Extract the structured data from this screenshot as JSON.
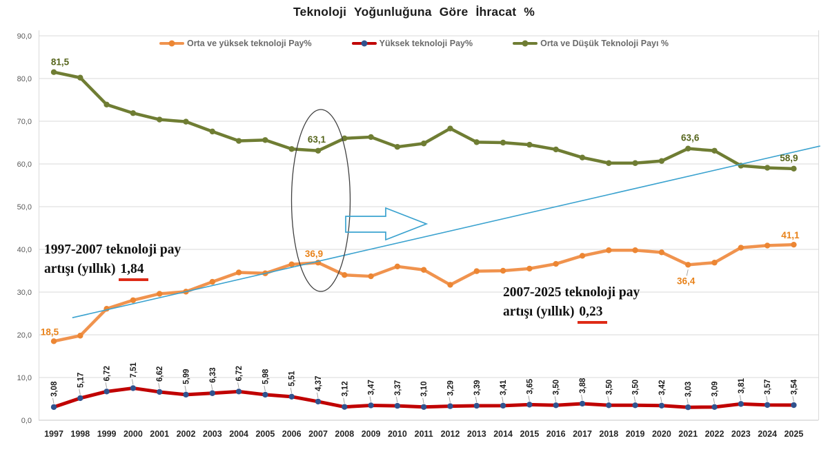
{
  "chart_data": {
    "type": "line",
    "title": "Teknoloji Yoğunluğuna Göre İhracat %",
    "x": [
      "1997",
      "1998",
      "1999",
      "2000",
      "2001",
      "2002",
      "2003",
      "2004",
      "2005",
      "2006",
      "2007",
      "2008",
      "2009",
      "2010",
      "2011",
      "2012",
      "2013",
      "2014",
      "2015",
      "2016",
      "2017",
      "2018",
      "2019",
      "2020",
      "2021",
      "2022",
      "2023",
      "2024",
      "2025"
    ],
    "ylim": [
      0,
      90
    ],
    "yticks": [
      "0,0",
      "10,0",
      "20,0",
      "30,0",
      "40,0",
      "50,0",
      "60,0",
      "70,0",
      "80,0",
      "90,0"
    ],
    "grid": true,
    "legend_position": "top",
    "series": [
      {
        "name": "Orta ve yüksek teknoloji Pay%",
        "color": "#F0934E",
        "marker_color": "#EC8633",
        "label_color": "#E8821A",
        "values": [
          18.5,
          19.8,
          26.1,
          28.1,
          29.6,
          30.1,
          32.4,
          34.6,
          34.4,
          36.5,
          36.9,
          34.0,
          33.7,
          36.0,
          35.2,
          31.7,
          34.9,
          35.0,
          35.5,
          36.6,
          38.5,
          39.8,
          39.8,
          39.3,
          36.4,
          36.9,
          40.4,
          40.9,
          41.1
        ],
        "labeled_points": {
          "1997": "18,5",
          "2007": "36,9",
          "2021": "36,4",
          "2025": "41,1"
        }
      },
      {
        "name": "Yüksek teknoloji Pay%",
        "color": "#C00000",
        "marker_color": "#31538F",
        "label_color": "#1a1a1a",
        "values": [
          3.08,
          5.17,
          6.72,
          7.51,
          6.62,
          5.99,
          6.33,
          6.72,
          5.98,
          5.51,
          4.37,
          3.12,
          3.47,
          3.37,
          3.1,
          3.29,
          3.39,
          3.41,
          3.65,
          3.5,
          3.88,
          3.5,
          3.5,
          3.42,
          3.03,
          3.09,
          3.81,
          3.57,
          3.54
        ],
        "all_point_labels": [
          "3,08",
          "5,17",
          "6,72",
          "7,51",
          "6,62",
          "5,99",
          "6,33",
          "6,72",
          "5,98",
          "5,51",
          "4,37",
          "3,12",
          "3,47",
          "3,37",
          "3,10",
          "3,29",
          "3,39",
          "3,41",
          "3,65",
          "3,50",
          "3,88",
          "3,50",
          "3,50",
          "3,42",
          "3,03",
          "3,09",
          "3,81",
          "3,57",
          "3,54"
        ]
      },
      {
        "name": "Orta ve Düşük Teknoloji Payı %",
        "color": "#6F7D33",
        "marker_color": "#6F7D33",
        "label_color": "#56651C",
        "values": [
          81.5,
          80.2,
          73.9,
          71.9,
          70.4,
          69.9,
          67.6,
          65.4,
          65.6,
          63.5,
          63.1,
          66.0,
          66.3,
          64.0,
          64.8,
          68.3,
          65.1,
          65.0,
          64.5,
          63.4,
          61.5,
          60.2,
          60.2,
          60.7,
          63.6,
          63.1,
          59.6,
          59.1,
          58.9
        ],
        "labeled_points": {
          "1997": "81,5",
          "2007": "63,1",
          "2021": "63,6",
          "2025": "58,9"
        }
      }
    ],
    "trendline": {
      "color": "#3AA2CF",
      "x_start": 1997.7,
      "value_start": 24.0,
      "x_end": 2026.0,
      "value_end": 64.2
    },
    "shapes": [
      "highlight-ellipse-around-2007-crossover",
      "right-block-arrow"
    ],
    "annotations": [
      {
        "line1": "1997-2007 teknoloji pay",
        "line2_prefix": "artışı (yıllık) ",
        "value": "1,84"
      },
      {
        "line1": "2007-2025 teknoloji pay",
        "line2_prefix": "artışı (yıllık) ",
        "value": "0,23"
      }
    ],
    "colors": {
      "grid": "#D9D9D9",
      "axis_text": "#595959",
      "x_label_text": "#262626",
      "annotation_underline": "#DE2A16"
    }
  }
}
